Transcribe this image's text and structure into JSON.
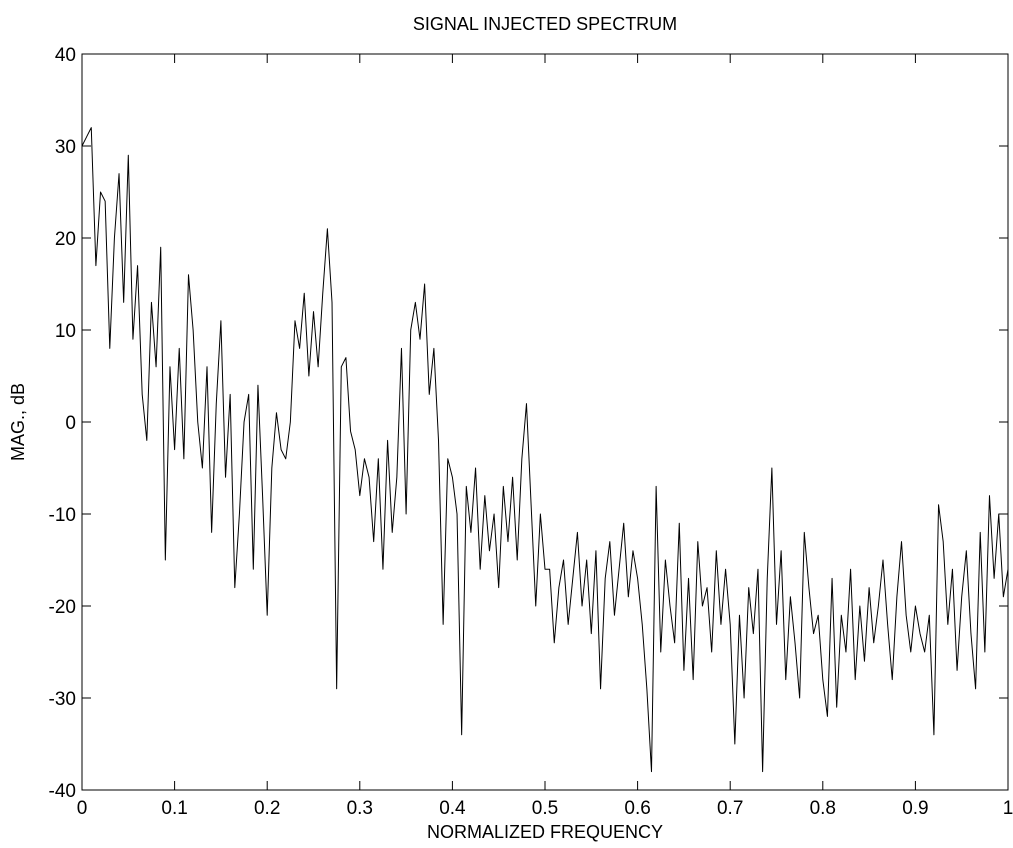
{
  "chart_data": {
    "type": "line",
    "title": "SIGNAL INJECTED SPECTRUM",
    "x_label": "NORMALIZED FREQUENCY",
    "y_label": "MAG., dB",
    "xlim": [
      0,
      1
    ],
    "ylim": [
      -40,
      40
    ],
    "xticks": [
      0,
      0.1,
      0.2,
      0.3,
      0.4,
      0.5,
      0.6,
      0.7,
      0.8,
      0.9,
      1
    ],
    "yticks": [
      -40,
      -30,
      -20,
      -10,
      0,
      10,
      20,
      30,
      40
    ],
    "grid": false,
    "x": [
      0,
      0.005,
      0.01,
      0.015,
      0.02,
      0.025,
      0.03,
      0.035,
      0.04,
      0.045,
      0.05,
      0.055,
      0.06,
      0.065,
      0.07,
      0.075,
      0.08,
      0.085,
      0.09,
      0.095,
      0.1,
      0.105,
      0.11,
      0.115,
      0.12,
      0.125,
      0.13,
      0.135,
      0.14,
      0.145,
      0.15,
      0.155,
      0.16,
      0.165,
      0.17,
      0.175,
      0.18,
      0.185,
      0.19,
      0.195,
      0.2,
      0.205,
      0.21,
      0.215,
      0.22,
      0.225,
      0.23,
      0.235,
      0.24,
      0.245,
      0.25,
      0.255,
      0.26,
      0.265,
      0.27,
      0.275,
      0.28,
      0.285,
      0.29,
      0.295,
      0.3,
      0.305,
      0.31,
      0.315,
      0.32,
      0.325,
      0.33,
      0.335,
      0.34,
      0.345,
      0.35,
      0.355,
      0.36,
      0.365,
      0.37,
      0.375,
      0.38,
      0.385,
      0.39,
      0.395,
      0.4,
      0.405,
      0.41,
      0.415,
      0.42,
      0.425,
      0.43,
      0.435,
      0.44,
      0.445,
      0.45,
      0.455,
      0.46,
      0.465,
      0.47,
      0.475,
      0.48,
      0.485,
      0.49,
      0.495,
      0.5,
      0.505,
      0.51,
      0.515,
      0.52,
      0.525,
      0.53,
      0.535,
      0.54,
      0.545,
      0.55,
      0.555,
      0.56,
      0.565,
      0.57,
      0.575,
      0.58,
      0.585,
      0.59,
      0.595,
      0.6,
      0.605,
      0.61,
      0.615,
      0.62,
      0.625,
      0.63,
      0.635,
      0.64,
      0.645,
      0.65,
      0.655,
      0.66,
      0.665,
      0.67,
      0.675,
      0.68,
      0.685,
      0.69,
      0.695,
      0.7,
      0.705,
      0.71,
      0.715,
      0.72,
      0.725,
      0.73,
      0.735,
      0.74,
      0.745,
      0.75,
      0.755,
      0.76,
      0.765,
      0.77,
      0.775,
      0.78,
      0.785,
      0.79,
      0.795,
      0.8,
      0.805,
      0.81,
      0.815,
      0.82,
      0.825,
      0.83,
      0.835,
      0.84,
      0.845,
      0.85,
      0.855,
      0.86,
      0.865,
      0.87,
      0.875,
      0.88,
      0.885,
      0.89,
      0.895,
      0.9,
      0.905,
      0.91,
      0.915,
      0.92,
      0.925,
      0.93,
      0.935,
      0.94,
      0.945,
      0.95,
      0.955,
      0.96,
      0.965,
      0.97,
      0.975,
      0.98,
      0.985,
      0.99,
      0.995,
      1
    ],
    "series": [
      {
        "color": "#000000",
        "values": [
          30,
          31,
          32,
          17,
          25,
          24,
          8,
          20,
          27,
          13,
          29,
          9,
          17,
          3,
          -2,
          13,
          6,
          19,
          -15,
          6,
          -3,
          8,
          -4,
          16,
          10,
          0,
          -5,
          6,
          -12,
          2,
          11,
          -6,
          3,
          -18,
          -10,
          0,
          3,
          -16,
          4,
          -8,
          -21,
          -5,
          1,
          -3,
          -4,
          0,
          11,
          8,
          14,
          5,
          12,
          6,
          14,
          21,
          13,
          -29,
          6,
          7,
          -1,
          -3,
          -8,
          -4,
          -6,
          -13,
          -4,
          -16,
          -2,
          -12,
          -6,
          8,
          -10,
          10,
          13,
          9,
          15,
          3,
          8,
          -2,
          -22,
          -4,
          -6,
          -10,
          -34,
          -7,
          -12,
          -5,
          -16,
          -8,
          -14,
          -10,
          -18,
          -7,
          -13,
          -6,
          -15,
          -4,
          2,
          -9,
          -20,
          -10,
          -16,
          -16,
          -24,
          -18,
          -15,
          -22,
          -17,
          -12,
          -20,
          -15,
          -23,
          -14,
          -29,
          -17,
          -13,
          -21,
          -16,
          -11,
          -19,
          -14,
          -17,
          -22,
          -29,
          -38,
          -7,
          -25,
          -15,
          -20,
          -24,
          -11,
          -27,
          -17,
          -28,
          -13,
          -20,
          -18,
          -25,
          -14,
          -22,
          -16,
          -22,
          -35,
          -21,
          -30,
          -18,
          -23,
          -16,
          -38,
          -17,
          -5,
          -22,
          -14,
          -28,
          -19,
          -24,
          -30,
          -12,
          -18,
          -23,
          -21,
          -28,
          -32,
          -17,
          -31,
          -21,
          -25,
          -16,
          -28,
          -20,
          -26,
          -18,
          -24,
          -20,
          -15,
          -22,
          -28,
          -19,
          -13,
          -21,
          -25,
          -20,
          -23,
          -25,
          -21,
          -34,
          -9,
          -13,
          -22,
          -16,
          -27,
          -19,
          -14,
          -23,
          -29,
          -12,
          -25,
          -8,
          -17,
          -10,
          -19,
          -16
        ]
      }
    ]
  }
}
